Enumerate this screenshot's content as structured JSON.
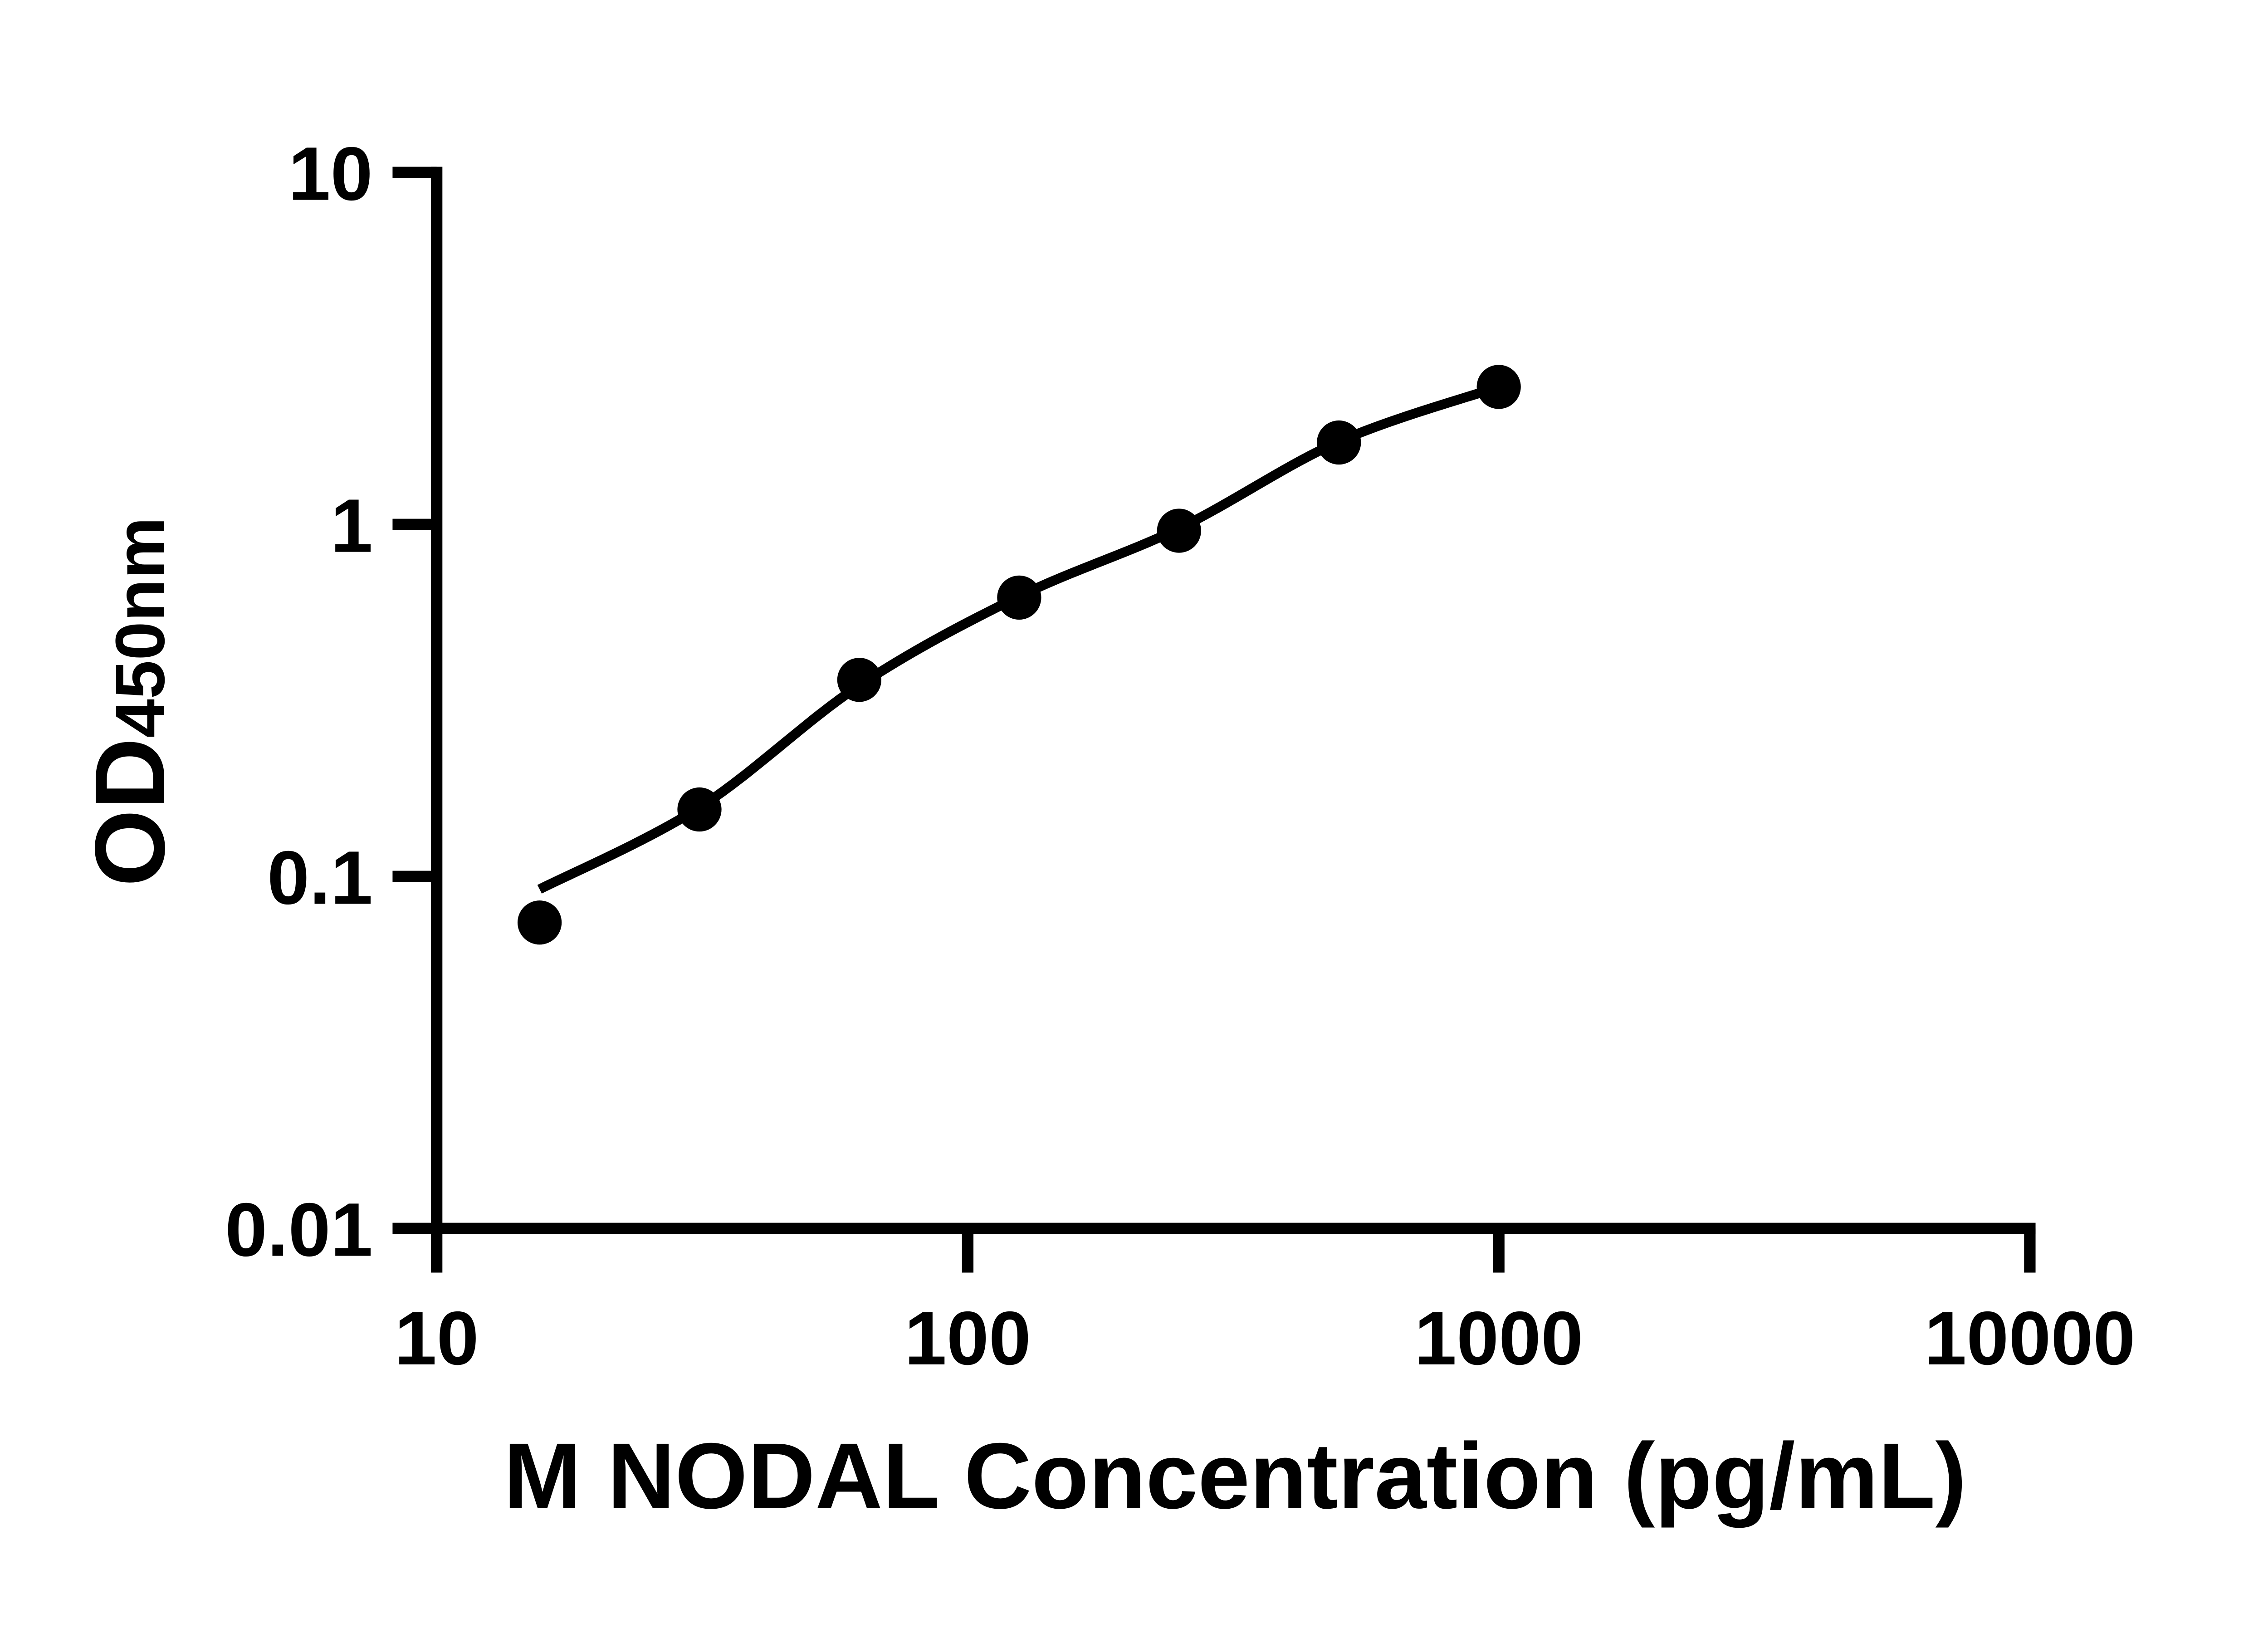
{
  "page": {
    "background_color": "#ffffff"
  },
  "chart_data": {
    "type": "scatter",
    "title": "",
    "xlabel": "M NODAL Concentration (pg/mL)",
    "ylabel_main": "OD",
    "ylabel_sub": "450nm",
    "x_scale": "log10",
    "y_scale": "log10",
    "xlim": [
      10,
      10000
    ],
    "ylim": [
      0.01,
      10
    ],
    "x_ticks": [
      10,
      100,
      1000,
      10000
    ],
    "x_tick_labels": [
      "10",
      "100",
      "1000",
      "10000"
    ],
    "y_ticks": [
      10,
      1,
      0.1,
      0.01
    ],
    "y_tick_labels": [
      "10",
      "1",
      "0.1",
      "0.01"
    ],
    "grid": false,
    "legend": null,
    "colors": {
      "axis": "#000000",
      "marker": "#000000",
      "curve": "#000000",
      "text": "#000000"
    },
    "series": [
      {
        "name": "standard-points",
        "type": "points",
        "marker": "circle",
        "x": [
          15.625,
          31.25,
          62.5,
          125,
          250,
          500,
          1000
        ],
        "y": [
          0.074,
          0.155,
          0.362,
          0.62,
          0.96,
          1.71,
          2.46
        ]
      },
      {
        "name": "fit-curve",
        "type": "line",
        "x": [
          15.625,
          31.25,
          62.5,
          125,
          250,
          500,
          1000
        ],
        "y": [
          0.092,
          0.157,
          0.349,
          0.625,
          0.975,
          1.72,
          2.46
        ]
      }
    ]
  }
}
